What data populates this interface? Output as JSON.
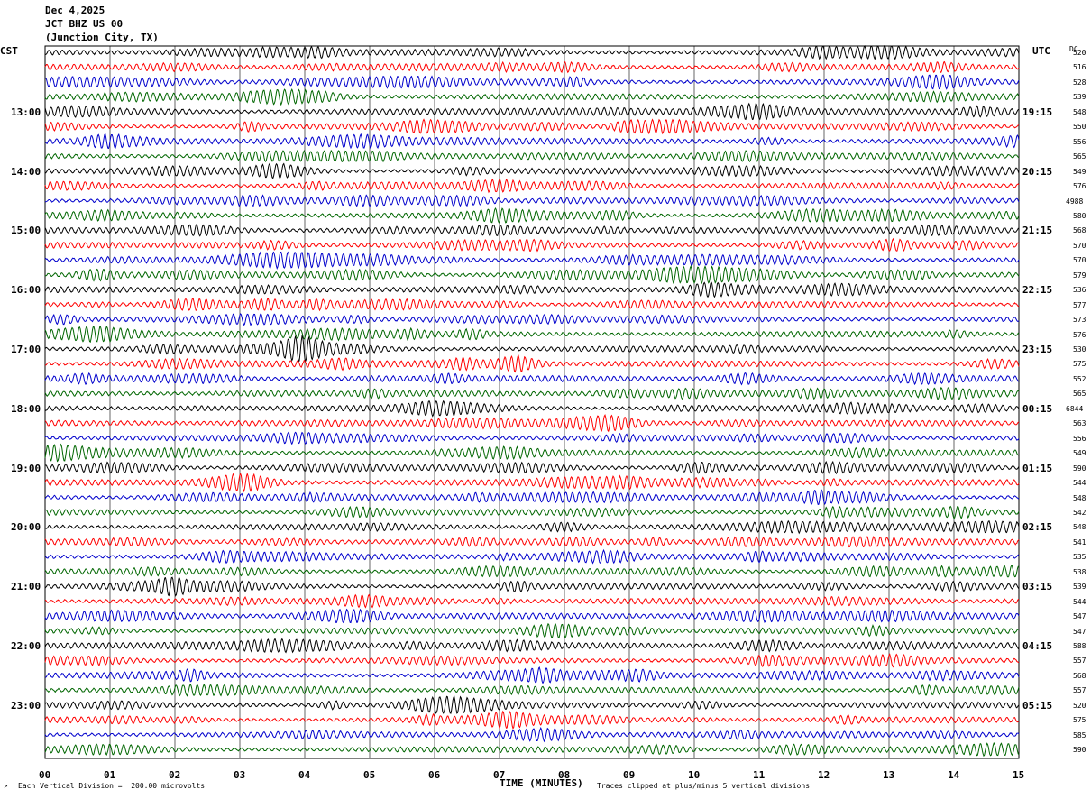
{
  "header": {
    "date": "Dec 4,2025",
    "station": "JCT BHZ US 00",
    "location": "(Junction City, TX)"
  },
  "labels": {
    "left_tz": "CST",
    "right_tz": "UTC",
    "dc": "DC",
    "xlabel": "TIME (MINUTES)",
    "scale_note": "Each Vertical Division =  200.00 microvolts",
    "clip_note": "Traces clipped at plus/minus 5 vertical divisions"
  },
  "chart_data": {
    "type": "line",
    "title": "",
    "xlabel": "TIME (MINUTES)",
    "xlim": [
      0,
      15
    ],
    "x_ticks": [
      "00",
      "01",
      "02",
      "03",
      "04",
      "05",
      "06",
      "07",
      "08",
      "09",
      "10",
      "11",
      "12",
      "13",
      "14",
      "15"
    ],
    "trace_minutes": 15,
    "trace_count": 48,
    "trace_colors": [
      "#000000",
      "#ff0000",
      "#0000cc",
      "#006600"
    ],
    "left_hour_labels": [
      "13:00",
      "14:00",
      "15:00",
      "16:00",
      "17:00",
      "18:00",
      "19:00",
      "20:00",
      "21:00",
      "22:00",
      "23:00"
    ],
    "right_hour_labels": [
      "19:15",
      "20:15",
      "21:15",
      "22:15",
      "23:15",
      "00:15",
      "01:15",
      "02:15",
      "03:15",
      "04:15",
      "05:15"
    ],
    "dc_offsets": [
      "520",
      "516",
      "528",
      "539",
      "548",
      "550",
      "556",
      "565",
      "549",
      "576",
      "4988",
      "580",
      "568",
      "570",
      "570",
      "579",
      "536",
      "577",
      "573",
      "576",
      "530",
      "575",
      "552",
      "565",
      "6844",
      "563",
      "556",
      "549",
      "590",
      "544",
      "548",
      "542",
      "548",
      "541",
      "535",
      "538",
      "539",
      "544",
      "547",
      "547",
      "588",
      "557",
      "568",
      "557",
      "520",
      "575",
      "585",
      "590"
    ]
  }
}
